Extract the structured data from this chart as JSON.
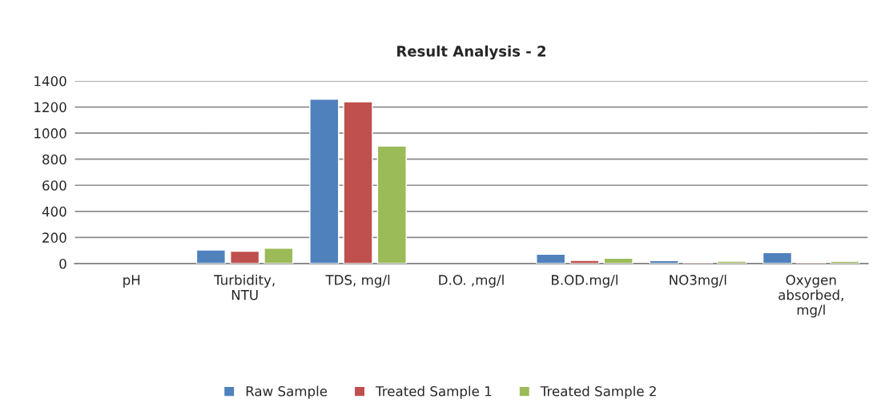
{
  "chart_data": {
    "type": "bar",
    "title": "Result Analysis - 2",
    "categories": [
      "pH",
      "Turbidity,\nNTU",
      "TDS, mg/l",
      "D.O. ,mg/l",
      "B.OD.mg/l",
      "NO3mg/l",
      "Oxygen\nabsorbed,\nmg/l"
    ],
    "series": [
      {
        "name": "Raw Sample",
        "color": "#4f81bd",
        "values": [
          null,
          104,
          1260,
          null,
          71,
          22,
          83
        ]
      },
      {
        "name": "Treated Sample 1",
        "color": "#c0504d",
        "values": [
          null,
          94,
          1240,
          null,
          24,
          10,
          10
        ]
      },
      {
        "name": "Treated Sample 2",
        "color": "#9bbb59",
        "values": [
          null,
          118,
          900,
          null,
          41,
          18,
          17
        ]
      }
    ],
    "ylim": [
      0,
      1400
    ],
    "yticks": [
      0,
      200,
      400,
      600,
      800,
      1000,
      1200,
      1400
    ],
    "grid": "y",
    "legend": "bottom"
  }
}
